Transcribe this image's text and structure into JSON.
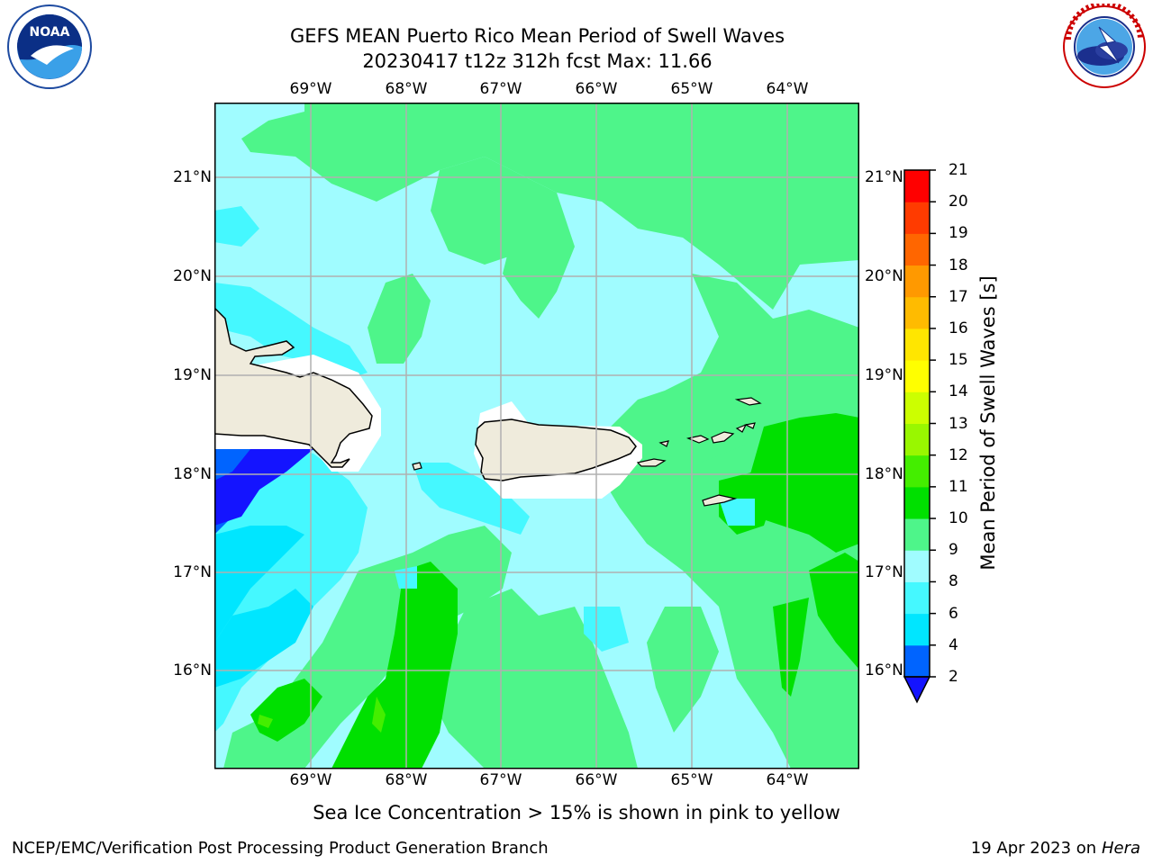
{
  "header": {
    "title_line1": "GEFS MEAN Puerto Rico Mean Period of Swell Waves",
    "title_line2": "20230417 t12z 312h fcst   Max: 11.66"
  },
  "logos": {
    "left": {
      "icon": "noaa-logo-icon",
      "text": "NOAA",
      "ring_text": "NATIONAL OCEANIC AND ATMOSPHERIC ADMINISTRATION · U.S. DEPARTMENT OF COMMERCE"
    },
    "right": {
      "icon": "nws-logo-icon",
      "ring_text": "NATIONAL WEATHER SERVICE"
    }
  },
  "map": {
    "x_ticks": [
      "69°W",
      "68°W",
      "67°W",
      "66°W",
      "65°W",
      "64°W"
    ],
    "y_ticks": [
      "21°N",
      "20°N",
      "19°N",
      "18°N",
      "17°N",
      "16°N"
    ],
    "lon_range": [
      -70,
      -63.25
    ],
    "lat_range": [
      15.1,
      21.75
    ],
    "land_color": "#efebdc",
    "gridlines": true
  },
  "colorbar": {
    "label": "Mean Period of Swell Waves [s]",
    "levels": [
      2,
      4,
      6,
      8,
      9,
      10,
      11,
      12,
      13,
      14,
      15,
      16,
      17,
      18,
      19,
      20,
      21
    ],
    "tick_labels": [
      "2",
      "4",
      "6",
      "8",
      "9",
      "10",
      "11",
      "12",
      "13",
      "14",
      "15",
      "16",
      "17",
      "18",
      "19",
      "20",
      "21"
    ],
    "colors": [
      "#0064ff",
      "#00e6ff",
      "#45f8ff",
      "#a0fcff",
      "#4ef58a",
      "#00e000",
      "#44ee00",
      "#99f700",
      "#ccff00",
      "#ffff00",
      "#ffe600",
      "#ffbb00",
      "#ff9900",
      "#ff6600",
      "#ff3b00",
      "#ff0000"
    ],
    "under_color": "#1414ff"
  },
  "note": "Sea Ice Concentration > 15% is shown in pink to yellow",
  "footer": {
    "left": "NCEP/EMC/Verification Post Processing Product Generation Branch",
    "date": "19 Apr 2023 on",
    "machine": "Hera"
  }
}
